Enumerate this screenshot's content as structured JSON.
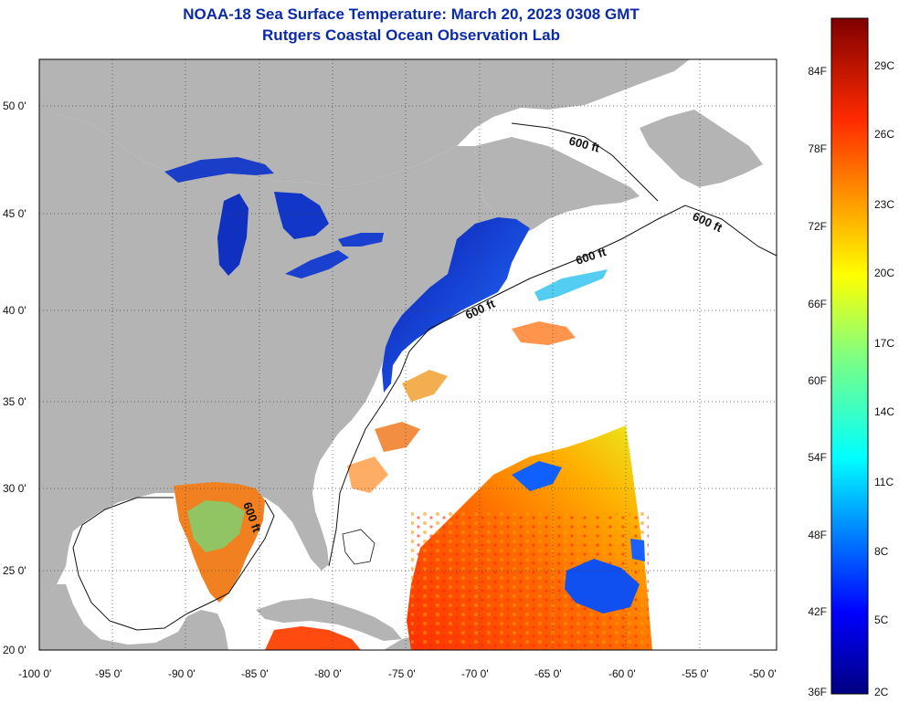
{
  "title": "NOAA-18 Sea Surface Temperature:  March 20, 2023 0308 GMT",
  "subtitle": "Rutgers Coastal Ocean Observation Lab",
  "axes": {
    "lat_ticks": [
      "50 0'",
      "45 0'",
      "40 0'",
      "35 0'",
      "30 0'",
      "25 0'",
      "20 0'"
    ],
    "lon_ticks": [
      "-100 0'",
      "-95 0'",
      "-90 0'",
      "-85 0'",
      "-80 0'",
      "-75 0'",
      "-70 0'",
      "-65 0'",
      "-60 0'",
      "-55 0'",
      "-50 0'"
    ]
  },
  "contour_label": "600 ft",
  "colorbar": {
    "fahrenheit": [
      "84F",
      "78F",
      "72F",
      "66F",
      "60F",
      "54F",
      "48F",
      "42F",
      "36F"
    ],
    "celsius": [
      "29C",
      "26C",
      "23C",
      "20C",
      "17C",
      "14C",
      "11C",
      "8C",
      "5C",
      "2C"
    ]
  },
  "colors": {
    "land": "#b4b4b4",
    "title": "#0a2aa8",
    "no_data": "#ffffff"
  }
}
